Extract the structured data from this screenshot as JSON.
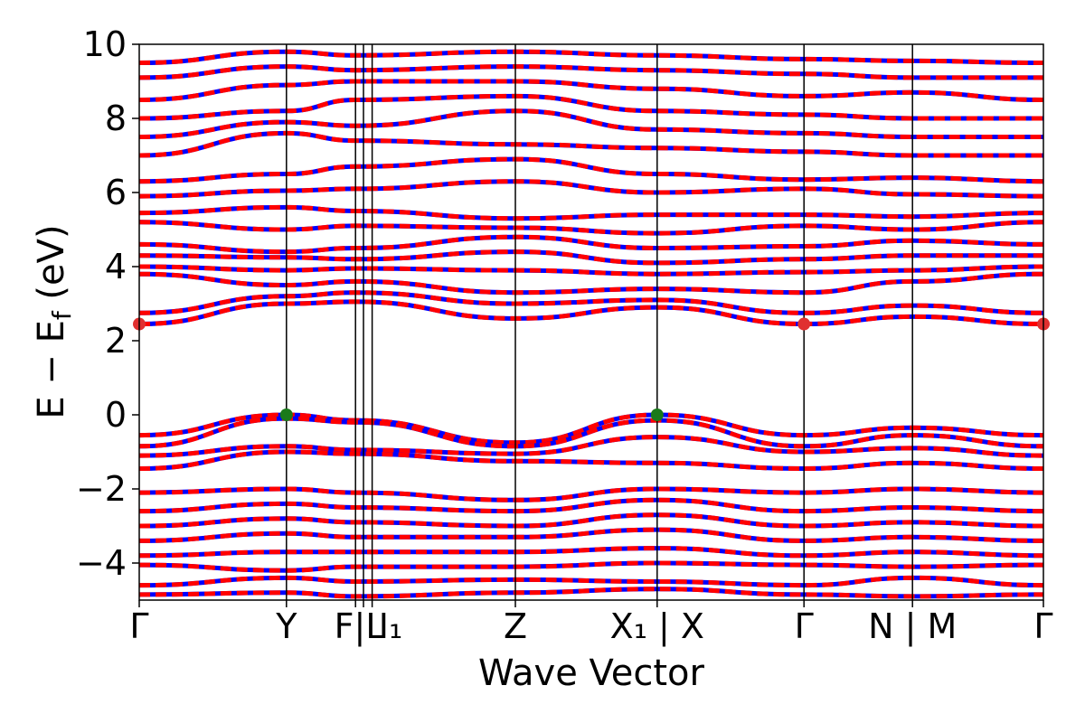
{
  "chart_data": {
    "type": "line",
    "title": "",
    "xlabel": "Wave Vector",
    "ylabel": "E − E_f (eV)",
    "ylabel_parts": {
      "main": "E − E",
      "sub": "f",
      "unit": " (eV)"
    },
    "ylim": [
      -5,
      10
    ],
    "yticks": [
      -4,
      -2,
      0,
      2,
      4,
      6,
      8,
      10
    ],
    "ytick_labels": [
      "−4",
      "−2",
      "0",
      "2",
      "4",
      "6",
      "8",
      "10"
    ],
    "grid": false,
    "legend": "none",
    "kpath": {
      "positions": [
        0.0,
        0.407,
        0.598,
        0.62,
        0.644,
        1.04,
        1.432,
        1.838,
        2.138,
        2.5
      ],
      "labels": [
        "Γ",
        "Y",
        "F",
        "L",
        "I₁",
        "Z",
        "X₁",
        "X",
        "Γ",
        "N",
        "M",
        "Γ"
      ],
      "tick_labels": [
        "Γ",
        "Y",
        "F|L",
        "I₁",
        "Z",
        "X₁ | X",
        "Γ",
        "N | M",
        "Γ"
      ],
      "tick_label_positions": [
        0.0,
        0.407,
        0.609,
        0.695,
        1.04,
        1.432,
        1.838,
        2.138,
        2.5
      ]
    },
    "series": [
      {
        "role": "spin-up bands",
        "color": "#0000ff"
      },
      {
        "role": "spin-down bands",
        "color": "#ff0000"
      }
    ],
    "band_extrema": [
      {
        "kind": "VBM",
        "k": 0.407,
        "energy": 0.0,
        "color": "#1a7a1a"
      },
      {
        "kind": "VBM",
        "k": 1.432,
        "energy": 0.0,
        "color": "#1a7a1a"
      },
      {
        "kind": "CBM",
        "k": 0.0,
        "energy": 2.45,
        "color": "#e03030"
      },
      {
        "kind": "CBM",
        "k": 1.838,
        "energy": 2.45,
        "color": "#e03030"
      },
      {
        "kind": "CBM",
        "k": 2.5,
        "energy": 2.45,
        "color": "#e03030"
      }
    ],
    "bands_at_nodes": {
      "nodes_k": [
        0.0,
        0.407,
        0.598,
        1.04,
        1.432,
        1.838,
        2.138,
        2.5
      ],
      "valence": [
        [
          -0.55,
          0.0,
          -0.15,
          -0.75,
          0.0,
          -0.55,
          -0.35,
          -0.55
        ],
        [
          -0.85,
          -0.1,
          -0.2,
          -0.85,
          -0.15,
          -0.85,
          -0.55,
          -0.85
        ],
        [
          -1.1,
          -0.85,
          -0.95,
          -1.05,
          -0.6,
          -1.0,
          -0.9,
          -1.1
        ],
        [
          -1.45,
          -1.0,
          -1.05,
          -1.25,
          -1.3,
          -1.45,
          -1.3,
          -1.45
        ],
        [
          -2.1,
          -2.0,
          -2.1,
          -2.3,
          -2.0,
          -2.1,
          -2.0,
          -2.1
        ],
        [
          -2.6,
          -2.4,
          -2.5,
          -2.6,
          -2.3,
          -2.6,
          -2.5,
          -2.6
        ],
        [
          -3.0,
          -2.8,
          -2.9,
          -3.0,
          -2.7,
          -3.0,
          -2.9,
          -3.0
        ],
        [
          -3.4,
          -3.2,
          -3.3,
          -3.3,
          -3.1,
          -3.4,
          -3.3,
          -3.4
        ],
        [
          -3.8,
          -3.7,
          -3.7,
          -3.7,
          -3.6,
          -3.8,
          -3.7,
          -3.8
        ],
        [
          -4.05,
          -4.2,
          -4.1,
          -4.1,
          -4.0,
          -4.05,
          -4.1,
          -4.05
        ],
        [
          -4.6,
          -4.4,
          -4.5,
          -4.45,
          -4.5,
          -4.6,
          -4.4,
          -4.6
        ],
        [
          -4.85,
          -4.8,
          -4.9,
          -4.8,
          -4.7,
          -4.85,
          -4.9,
          -4.85
        ]
      ],
      "conduction": [
        [
          2.45,
          3.0,
          3.05,
          2.6,
          2.9,
          2.45,
          2.65,
          2.45
        ],
        [
          2.75,
          3.2,
          3.3,
          3.0,
          3.1,
          2.75,
          2.95,
          2.75
        ],
        [
          3.8,
          3.5,
          3.6,
          3.3,
          3.4,
          3.3,
          3.6,
          3.8
        ],
        [
          4.0,
          3.9,
          3.95,
          3.9,
          3.8,
          3.85,
          3.9,
          4.0
        ],
        [
          4.3,
          4.25,
          4.2,
          4.4,
          4.1,
          4.2,
          4.3,
          4.3
        ],
        [
          4.6,
          4.4,
          4.5,
          4.8,
          4.5,
          4.55,
          4.7,
          4.6
        ],
        [
          5.2,
          5.0,
          5.1,
          5.05,
          4.9,
          5.1,
          5.0,
          5.2
        ],
        [
          5.45,
          5.6,
          5.5,
          5.3,
          5.4,
          5.4,
          5.35,
          5.45
        ],
        [
          5.9,
          6.05,
          6.1,
          6.3,
          6.0,
          6.1,
          5.95,
          5.9
        ],
        [
          6.3,
          6.5,
          6.7,
          6.9,
          6.5,
          6.35,
          6.4,
          6.3
        ],
        [
          7.0,
          7.6,
          7.4,
          7.3,
          7.2,
          7.1,
          7.0,
          7.0
        ],
        [
          7.5,
          7.9,
          7.8,
          8.2,
          7.7,
          7.6,
          7.5,
          7.5
        ],
        [
          8.0,
          8.2,
          8.5,
          8.6,
          8.2,
          8.1,
          8.0,
          8.0
        ],
        [
          8.5,
          8.9,
          9.0,
          9.0,
          8.8,
          8.6,
          8.7,
          8.5
        ],
        [
          9.1,
          9.4,
          9.3,
          9.4,
          9.3,
          9.2,
          9.1,
          9.1
        ],
        [
          9.5,
          9.8,
          9.7,
          9.8,
          9.7,
          9.6,
          9.55,
          9.5
        ]
      ]
    }
  }
}
